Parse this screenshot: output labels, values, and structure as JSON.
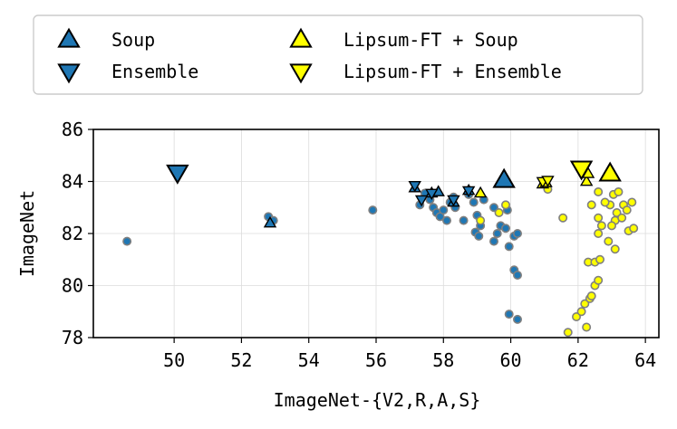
{
  "chart_data": {
    "type": "scatter",
    "xlabel": "ImageNet-{V2,R,A,S}",
    "ylabel": "ImageNet",
    "xlim": [
      47.6,
      64.4
    ],
    "ylim": [
      78,
      86
    ],
    "xticks": [
      50,
      52,
      54,
      56,
      58,
      60,
      62,
      64
    ],
    "yticks": [
      78,
      80,
      82,
      84,
      86
    ],
    "grid": true,
    "legend_position": "top",
    "legend": [
      {
        "label": "Soup",
        "marker": "triangle-up",
        "color": "#1f77b4"
      },
      {
        "label": "Ensemble",
        "marker": "triangle-down",
        "color": "#1f77b4"
      },
      {
        "label": "Lipsum-FT + Soup",
        "marker": "triangle-up",
        "color": "#ffff00"
      },
      {
        "label": "Lipsum-FT + Ensemble",
        "marker": "triangle-down",
        "color": "#ffff00"
      }
    ],
    "series": [
      {
        "marker": "circle",
        "color": "#1f77b4",
        "points": [
          [
            48.6,
            81.7
          ],
          [
            52.8,
            82.65
          ],
          [
            52.95,
            82.5
          ],
          [
            55.9,
            82.9
          ],
          [
            57.3,
            83.1
          ],
          [
            57.45,
            83.55
          ],
          [
            57.6,
            83.3
          ],
          [
            57.7,
            83.0
          ],
          [
            57.8,
            82.8
          ],
          [
            57.9,
            82.65
          ],
          [
            58.0,
            82.9
          ],
          [
            58.1,
            82.5
          ],
          [
            58.2,
            83.2
          ],
          [
            58.3,
            83.4
          ],
          [
            58.35,
            83.0
          ],
          [
            58.6,
            82.5
          ],
          [
            58.75,
            83.5
          ],
          [
            58.9,
            83.2
          ],
          [
            59.0,
            82.7
          ],
          [
            59.1,
            82.3
          ],
          [
            58.95,
            82.05
          ],
          [
            59.05,
            81.9
          ],
          [
            59.2,
            83.3
          ],
          [
            59.5,
            81.7
          ],
          [
            59.6,
            82.0
          ],
          [
            59.7,
            82.3
          ],
          [
            59.85,
            82.2
          ],
          [
            59.9,
            82.9
          ],
          [
            59.95,
            81.5
          ],
          [
            60.1,
            81.9
          ],
          [
            60.2,
            82.0
          ],
          [
            59.95,
            78.9
          ],
          [
            60.1,
            80.6
          ],
          [
            60.2,
            80.4
          ],
          [
            60.2,
            78.7
          ],
          [
            59.5,
            83.0
          ]
        ]
      },
      {
        "marker": "circle",
        "color": "#ffff00",
        "points": [
          [
            59.65,
            82.8
          ],
          [
            59.85,
            83.1
          ],
          [
            59.1,
            82.5
          ],
          [
            61.1,
            83.7
          ],
          [
            61.55,
            82.6
          ],
          [
            61.7,
            78.2
          ],
          [
            61.95,
            78.8
          ],
          [
            62.1,
            79.0
          ],
          [
            62.25,
            78.4
          ],
          [
            62.2,
            79.3
          ],
          [
            62.35,
            79.5
          ],
          [
            62.4,
            79.6
          ],
          [
            62.5,
            80.0
          ],
          [
            62.6,
            80.2
          ],
          [
            62.3,
            80.9
          ],
          [
            62.5,
            80.9
          ],
          [
            62.65,
            81.0
          ],
          [
            62.6,
            82.0
          ],
          [
            62.6,
            82.6
          ],
          [
            62.7,
            82.3
          ],
          [
            62.9,
            81.7
          ],
          [
            62.6,
            83.6
          ],
          [
            62.95,
            83.1
          ],
          [
            63.05,
            83.5
          ],
          [
            63.1,
            82.5
          ],
          [
            63.15,
            82.8
          ],
          [
            63.2,
            83.6
          ],
          [
            63.3,
            82.6
          ],
          [
            63.35,
            83.1
          ],
          [
            63.45,
            82.9
          ],
          [
            63.5,
            82.1
          ],
          [
            63.6,
            83.2
          ],
          [
            63.65,
            82.2
          ],
          [
            63.1,
            81.4
          ],
          [
            63.0,
            82.3
          ],
          [
            62.8,
            83.2
          ],
          [
            62.4,
            83.1
          ]
        ]
      },
      {
        "marker": "triangle-up",
        "color": "#1f77b4",
        "points": [
          [
            52.85,
            82.4
          ],
          [
            57.15,
            83.75
          ],
          [
            57.65,
            83.55
          ],
          [
            57.85,
            83.6
          ],
          [
            58.3,
            83.2
          ],
          [
            58.75,
            83.65
          ],
          [
            59.8,
            84.05
          ]
        ]
      },
      {
        "marker": "triangle-down",
        "color": "#1f77b4",
        "points": [
          [
            50.1,
            84.35
          ],
          [
            57.15,
            83.85
          ],
          [
            57.35,
            83.3
          ],
          [
            57.65,
            83.55
          ],
          [
            58.3,
            83.3
          ],
          [
            58.75,
            83.65
          ]
        ]
      },
      {
        "marker": "triangle-up",
        "color": "#ffff00",
        "points": [
          [
            59.1,
            83.55
          ],
          [
            60.95,
            83.9
          ],
          [
            61.05,
            83.95
          ],
          [
            62.25,
            84.0
          ],
          [
            62.3,
            84.3
          ],
          [
            62.95,
            84.3
          ]
        ]
      },
      {
        "marker": "triangle-down",
        "color": "#ffff00",
        "points": [
          [
            60.95,
            84.0
          ],
          [
            61.1,
            84.05
          ],
          [
            62.1,
            84.5
          ]
        ]
      }
    ]
  }
}
